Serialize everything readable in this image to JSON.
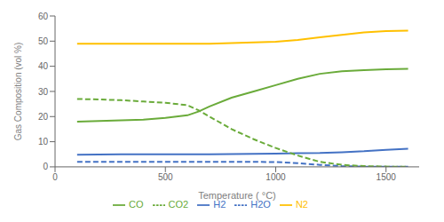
{
  "chart_data": {
    "type": "line",
    "xlabel": "Temperature ( °C)",
    "ylabel": "Gas Composition (vol %)",
    "xlim": [
      0,
      1650
    ],
    "ylim": [
      0,
      60
    ],
    "xticks": [
      0,
      500,
      1000,
      1500
    ],
    "yticks": [
      0,
      10,
      20,
      30,
      40,
      50,
      60
    ],
    "grid": false,
    "legend": "bottom",
    "series": [
      {
        "name": "H2",
        "color": "#4472C4",
        "line_style": "solid",
        "x": [
          100,
          200,
          300,
          400,
          500,
          600,
          700,
          800,
          900,
          1000,
          1100,
          1200,
          1300,
          1400,
          1500,
          1600
        ],
        "values": [
          4.8,
          4.9,
          5.0,
          5.0,
          5.0,
          5.0,
          5.0,
          5.1,
          5.2,
          5.3,
          5.4,
          5.5,
          5.8,
          6.2,
          6.8,
          7.2
        ]
      },
      {
        "name": "H2O",
        "color": "#4472C4",
        "line_style": "dashed",
        "x": [
          100,
          200,
          300,
          400,
          500,
          600,
          700,
          800,
          900,
          1000,
          1100,
          1200,
          1300,
          1400,
          1500,
          1600
        ],
        "values": [
          2.0,
          2.0,
          2.0,
          2.0,
          2.0,
          2.0,
          2.0,
          2.0,
          2.0,
          1.9,
          1.5,
          0.8,
          0.3,
          0.1,
          0.05,
          0.02
        ]
      },
      {
        "name": "CO",
        "color": "#6AAB3A",
        "line_style": "solid",
        "x": [
          100,
          200,
          300,
          400,
          500,
          600,
          650,
          700,
          800,
          900,
          1000,
          1100,
          1200,
          1300,
          1400,
          1500,
          1600
        ],
        "values": [
          18.0,
          18.2,
          18.5,
          18.8,
          19.5,
          20.5,
          22.0,
          24.0,
          27.5,
          30.0,
          32.5,
          35.0,
          37.0,
          38.0,
          38.5,
          38.8,
          39.0
        ]
      },
      {
        "name": "CO2",
        "color": "#6AAB3A",
        "line_style": "dashed",
        "x": [
          100,
          200,
          300,
          400,
          500,
          600,
          650,
          700,
          800,
          900,
          1000,
          1100,
          1200,
          1300,
          1400,
          1500,
          1600
        ],
        "values": [
          27.0,
          26.8,
          26.5,
          26.0,
          25.5,
          24.5,
          22.5,
          20.0,
          15.0,
          11.0,
          7.5,
          4.5,
          2.0,
          0.8,
          0.3,
          0.1,
          0.05
        ]
      },
      {
        "name": "N2",
        "color": "#FFC000",
        "line_style": "solid",
        "x": [
          100,
          200,
          300,
          400,
          500,
          600,
          700,
          800,
          900,
          1000,
          1100,
          1200,
          1300,
          1400,
          1500,
          1600
        ],
        "values": [
          49.0,
          49.0,
          49.0,
          49.0,
          49.0,
          49.0,
          49.0,
          49.2,
          49.5,
          49.8,
          50.5,
          51.5,
          52.5,
          53.5,
          54.0,
          54.2
        ]
      }
    ]
  }
}
